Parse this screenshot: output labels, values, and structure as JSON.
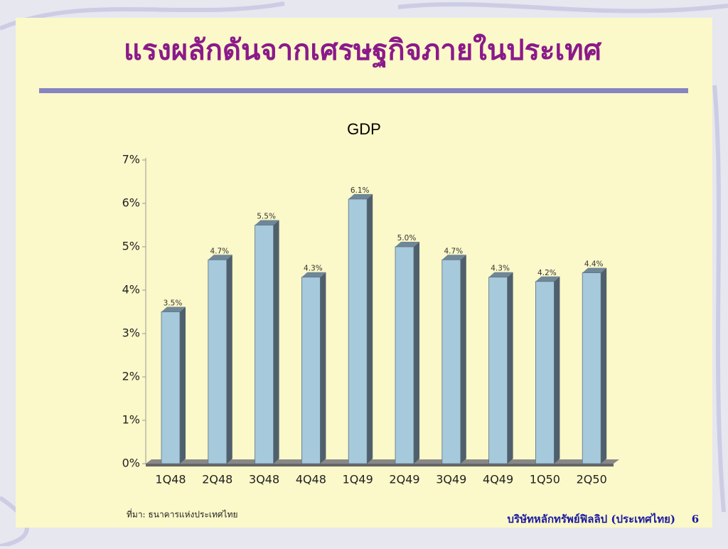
{
  "header": {
    "title": "แรงผลักดันจากเศรษฐกิจภายในประเทศ"
  },
  "chart_data": {
    "type": "bar",
    "title": "GDP",
    "categories": [
      "1Q48",
      "2Q48",
      "3Q48",
      "4Q48",
      "1Q49",
      "2Q49",
      "3Q49",
      "4Q49",
      "1Q50",
      "2Q50"
    ],
    "values": [
      3.5,
      4.7,
      5.5,
      4.3,
      6.1,
      5.0,
      4.7,
      4.3,
      4.2,
      4.4
    ],
    "value_labels": [
      "3.5%",
      "4.7%",
      "5.5%",
      "4.3%",
      "6.1%",
      "5.0%",
      "4.7%",
      "4.3%",
      "4.2%",
      "4.4%"
    ],
    "color": "#a6c9dc",
    "ylim": [
      0,
      7
    ],
    "yticks": [
      {
        "value": 0,
        "label": "0%"
      },
      {
        "value": 1,
        "label": "1%"
      },
      {
        "value": 2,
        "label": "2%"
      },
      {
        "value": 3,
        "label": "3%"
      },
      {
        "value": 4,
        "label": "4%"
      },
      {
        "value": 5,
        "label": "5%"
      },
      {
        "value": 6,
        "label": "6%"
      },
      {
        "value": 7,
        "label": "7%"
      }
    ]
  },
  "footer": {
    "source": "ที่มา: ธนาคารแห่งประเทศไทย",
    "company": "บริษัทหลักทรัพย์ฟิลลิป (ประเทศไทย)",
    "page_number": 6
  }
}
